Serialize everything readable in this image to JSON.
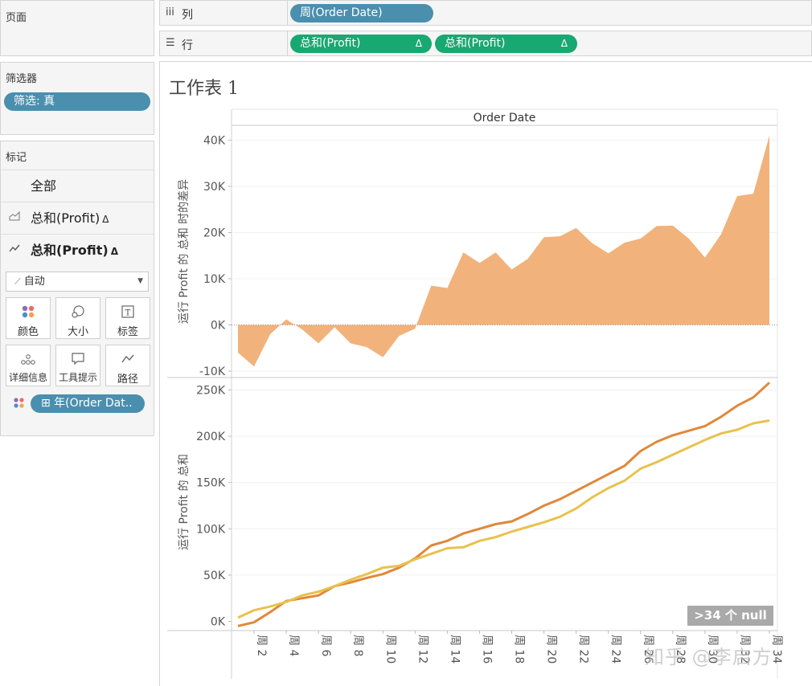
{
  "left_panel": {
    "pages_title": "页面",
    "filters_title": "筛选器",
    "filter_pill": "筛选: 真",
    "marks_title": "标记",
    "marks_rows": [
      {
        "label": "全部",
        "delta": "",
        "bold": false,
        "icon": "none"
      },
      {
        "label": "总和(Profit)",
        "delta": "Δ",
        "bold": false,
        "icon": "area-icon"
      },
      {
        "label": "总和(Profit)",
        "delta": "Δ",
        "bold": true,
        "icon": "line-icon"
      }
    ],
    "mark_type": "自动",
    "mark_buttons": [
      {
        "label": "颜色",
        "icon": "color-icon"
      },
      {
        "label": "大小",
        "icon": "size-icon"
      },
      {
        "label": "标签",
        "icon": "label-icon"
      },
      {
        "label": "详细信息",
        "icon": "detail-icon"
      },
      {
        "label": "工具提示",
        "icon": "tooltip-icon"
      },
      {
        "label": "路径",
        "icon": "path-icon"
      }
    ],
    "color_field_pill": "⊞ 年(Order Dat.."
  },
  "shelves": {
    "columns_label": "列",
    "columns_pill": "周(Order Date)",
    "rows_label": "行",
    "rows_pills": [
      {
        "label": "总和(Profit)",
        "delta": "Δ"
      },
      {
        "label": "总和(Profit)",
        "delta": "Δ"
      }
    ]
  },
  "sheet": {
    "title": "工作表 1",
    "null_indicator": ">34 个 null",
    "watermark": "知乎 @李启方"
  },
  "chart_data": [
    {
      "type": "area",
      "header": "Order Date",
      "ylabel": "运行 Profit 的 总和 时的差异",
      "ylim": [
        -11000,
        41000
      ],
      "ytick_labels": [
        "40K",
        "30K",
        "20K",
        "10K",
        "0K",
        "-10K"
      ],
      "ytick_values": [
        40000,
        30000,
        20000,
        10000,
        0,
        -10000
      ],
      "x": [
        1,
        2,
        3,
        4,
        5,
        6,
        7,
        8,
        9,
        10,
        11,
        12,
        13,
        14,
        15,
        16,
        17,
        18,
        19,
        20,
        21,
        22,
        23,
        24,
        25,
        26,
        27,
        28,
        29,
        30,
        31,
        32,
        33,
        34
      ],
      "values": [
        -6000,
        -9000,
        -2000,
        1200,
        -1000,
        -4000,
        -500,
        -4000,
        -4800,
        -7000,
        -2400,
        -800,
        8500,
        8000,
        15700,
        13400,
        15700,
        12000,
        14300,
        19000,
        19200,
        21000,
        17700,
        15500,
        17800,
        18700,
        21400,
        21500,
        18700,
        14600,
        19600,
        27900,
        28400,
        41000
      ],
      "color": "#f2b27b"
    },
    {
      "type": "line",
      "xlabel": "",
      "ylabel": "运行 Profit 的 总和",
      "ylim": [
        -2500,
        260000
      ],
      "ytick_labels": [
        "250K",
        "200K",
        "150K",
        "100K",
        "50K",
        "0K"
      ],
      "ytick_values": [
        250000,
        200000,
        150000,
        100000,
        50000,
        0
      ],
      "x": [
        1,
        2,
        3,
        4,
        5,
        6,
        7,
        8,
        9,
        10,
        11,
        12,
        13,
        14,
        15,
        16,
        17,
        18,
        19,
        20,
        21,
        22,
        23,
        24,
        25,
        26,
        27,
        28,
        29,
        30,
        31,
        32,
        33,
        34
      ],
      "xtick_labels": [
        "周 2",
        "周 4",
        "周 6",
        "周 8",
        "周 10",
        "周 12",
        "周 14",
        "周 16",
        "周 18",
        "周 20",
        "周 22",
        "周 24",
        "周 26",
        "周 28",
        "周 30",
        "周 32",
        "周 34"
      ],
      "xtick_values": [
        2,
        4,
        6,
        8,
        10,
        12,
        14,
        16,
        18,
        20,
        22,
        24,
        26,
        28,
        30,
        32,
        34
      ],
      "series": [
        {
          "color": "#e0883a",
          "values": [
            -5000,
            -1000,
            10000,
            22000,
            25000,
            28000,
            38000,
            42000,
            47000,
            51000,
            58000,
            68000,
            82000,
            87000,
            95000,
            100000,
            105000,
            108000,
            116000,
            125000,
            132000,
            141000,
            150000,
            159000,
            168000,
            184000,
            194000,
            201000,
            206000,
            211000,
            221000,
            233000,
            242000,
            258000
          ]
        },
        {
          "color": "#e8c24e",
          "values": [
            4000,
            12000,
            16000,
            21000,
            28000,
            32000,
            38000,
            45000,
            51000,
            58000,
            60000,
            67000,
            73000,
            79000,
            80000,
            87000,
            91000,
            97000,
            102000,
            107000,
            113000,
            122000,
            134000,
            144000,
            152000,
            165000,
            172000,
            180000,
            188000,
            196000,
            203000,
            207000,
            214000,
            217000
          ]
        }
      ]
    }
  ]
}
